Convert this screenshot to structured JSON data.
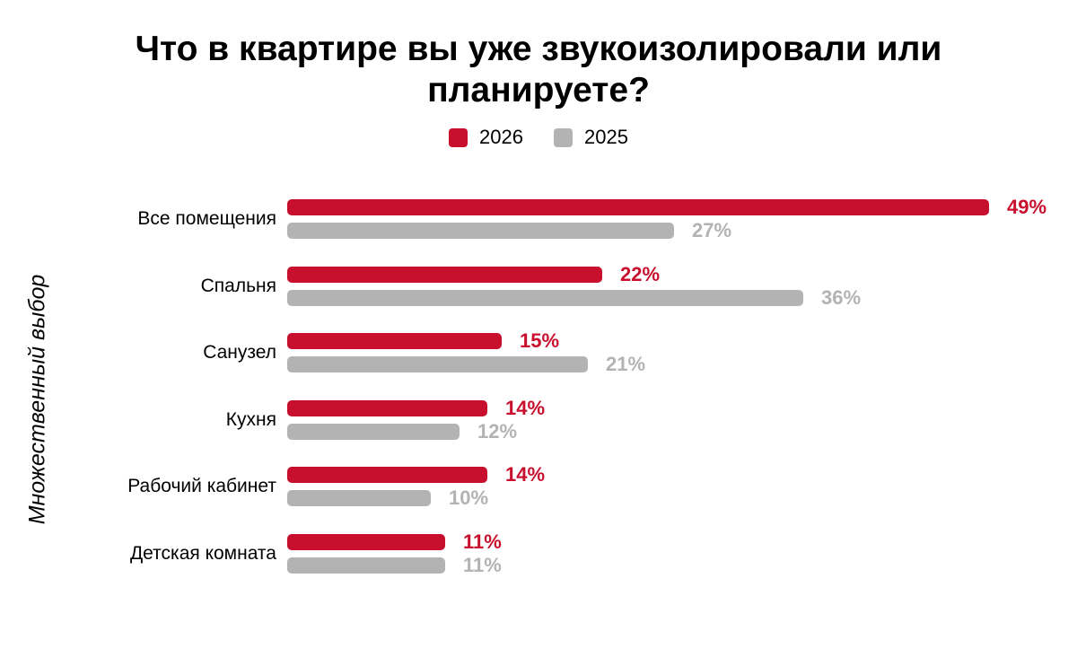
{
  "chart_data": {
    "type": "bar",
    "orientation": "horizontal",
    "title": "Что в квартире вы уже звукоизолировали или планируете?",
    "side_note": "Множественный выбор",
    "categories": [
      "Все помещения",
      "Спальня",
      "Санузел",
      "Кухня",
      "Рабочий кабинет",
      "Детская комната"
    ],
    "series": [
      {
        "name": "2026",
        "color": "#C8102E",
        "values": [
          49,
          22,
          15,
          14,
          14,
          11
        ]
      },
      {
        "name": "2025",
        "color": "#B3B3B3",
        "values": [
          27,
          36,
          21,
          12,
          10,
          11
        ]
      }
    ],
    "value_suffix": "%",
    "xlim": [
      0,
      49
    ],
    "grid": false,
    "legend_position": "top",
    "text_color": "#000000",
    "background": "#FFFFFF"
  }
}
